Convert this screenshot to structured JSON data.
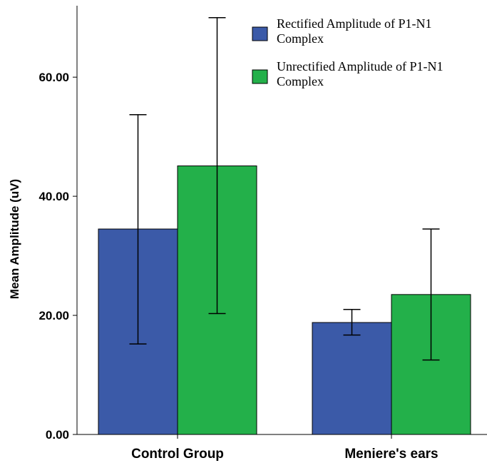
{
  "chart_data": {
    "type": "bar",
    "ylabel": "Mean Amplitude (uV)",
    "xlabel": "",
    "ylim": [
      0,
      72
    ],
    "yticks": [
      "0.00",
      "20.00",
      "40.00",
      "60.00"
    ],
    "categories": [
      "Control Group",
      "Meniere's ears"
    ],
    "series": [
      {
        "name": "Rectified Amplitude of P1-N1 Complex",
        "legend_lines": [
          "Rectified Amplitude of P1-N1",
          "Complex"
        ],
        "color": "#3b5aa8",
        "values": [
          34.5,
          18.8
        ],
        "error_low": [
          15.2,
          16.7
        ],
        "error_high": [
          53.7,
          21.0
        ]
      },
      {
        "name": "Unrectified Amplitude of P1-N1 Complex",
        "legend_lines": [
          "Unrectified Amplitude of P1-N1",
          "Complex"
        ],
        "color": "#23b04a",
        "values": [
          45.1,
          23.5
        ],
        "error_low": [
          20.3,
          12.5
        ],
        "error_high": [
          70.0,
          34.5
        ]
      }
    ],
    "grid": false,
    "legend_position": "top-right"
  }
}
